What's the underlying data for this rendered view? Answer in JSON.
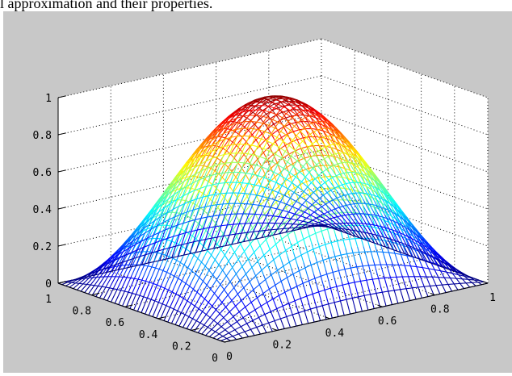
{
  "caption": "l approximation and their properties.",
  "figure": {
    "background": "#c8c8c8",
    "axes_background": "#ffffff"
  },
  "chart_data": {
    "type": "surface-mesh",
    "function": "z = sin(pi*x) * sin(pi*y)",
    "x": [
      0,
      0.1,
      0.2,
      0.3,
      0.4,
      0.5,
      0.6,
      0.7,
      0.8,
      0.9,
      1
    ],
    "y": [
      0,
      0.1,
      0.2,
      0.3,
      0.4,
      0.5,
      0.6,
      0.7,
      0.8,
      0.9,
      1
    ],
    "z_max": 1,
    "xlim": [
      0,
      1
    ],
    "ylim": [
      0,
      1
    ],
    "zlim": [
      0,
      1
    ],
    "x_ticks": [
      "0",
      "0.2",
      "0.4",
      "0.6",
      "0.8",
      "1"
    ],
    "y_ticks": [
      "0",
      "0.2",
      "0.4",
      "0.6",
      "0.8",
      "1"
    ],
    "z_ticks": [
      "0",
      "0.2",
      "0.4",
      "0.6",
      "0.8",
      "1"
    ],
    "colormap": "jet",
    "grid": true
  }
}
